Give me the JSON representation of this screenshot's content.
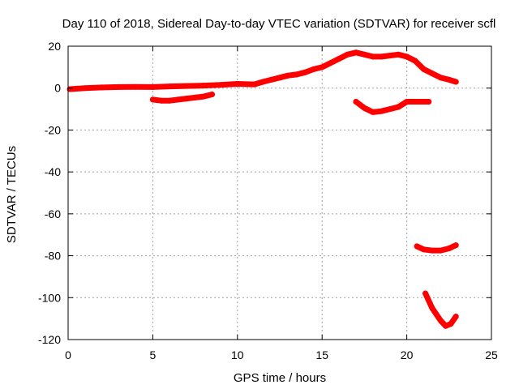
{
  "chart_data": {
    "type": "line",
    "title": "Day 110 of 2018, Sidereal Day-to-day VTEC variation (SDTVAR) for receiver scfl",
    "xlabel": "GPS time / hours",
    "ylabel": "SDTVAR / TECUs",
    "xlim": [
      0,
      25
    ],
    "ylim": [
      -120,
      20
    ],
    "x_ticks": [
      0,
      5,
      10,
      15,
      20,
      25
    ],
    "y_ticks": [
      20,
      0,
      -20,
      -40,
      -60,
      -80,
      -100,
      -120
    ],
    "grid": true,
    "legend": "none",
    "series_color": "#ff0000",
    "series": [
      {
        "x": [
          0.1,
          1,
          2,
          3,
          4,
          5,
          6,
          7,
          8,
          9,
          10,
          11,
          11.5,
          12,
          12.5,
          13,
          13.5,
          14,
          14.5,
          15,
          15.5,
          16,
          16.5,
          17,
          17.5,
          18,
          18.5,
          19,
          19.5,
          20,
          20.5,
          21,
          21.5,
          22,
          22.5,
          22.9
        ],
        "y": [
          -0.5,
          0,
          0.3,
          0.5,
          0.6,
          0.5,
          0.8,
          1,
          1.2,
          1.5,
          2,
          1.8,
          3,
          4,
          5,
          6,
          6.5,
          7.5,
          9,
          10,
          12,
          14,
          16,
          17,
          16,
          15,
          15,
          15.5,
          16,
          15,
          13,
          9,
          7,
          5,
          4,
          3
        ]
      },
      {
        "x": [
          5,
          5.5,
          6,
          6.5,
          7,
          7.5,
          8,
          8.5
        ],
        "y": [
          -5.5,
          -6,
          -6,
          -5.5,
          -5,
          -4.5,
          -4,
          -3
        ]
      },
      {
        "x": [
          17,
          17.5,
          18,
          18.5,
          19,
          19.5,
          20,
          20.5,
          21,
          21.3
        ],
        "y": [
          -6.5,
          -9.5,
          -11.5,
          -11,
          -10,
          -9,
          -6.5,
          -6.5,
          -6.5,
          -6.5
        ]
      },
      {
        "x": [
          20.6,
          21,
          21.5,
          22,
          22.5,
          22.9
        ],
        "y": [
          -75.5,
          -77,
          -77.5,
          -77.5,
          -76.5,
          -75
        ]
      },
      {
        "x": [
          21.1,
          21.5,
          22,
          22.3,
          22.6,
          22.9
        ],
        "y": [
          -98,
          -105,
          -111,
          -113.5,
          -112.5,
          -109
        ]
      }
    ]
  }
}
